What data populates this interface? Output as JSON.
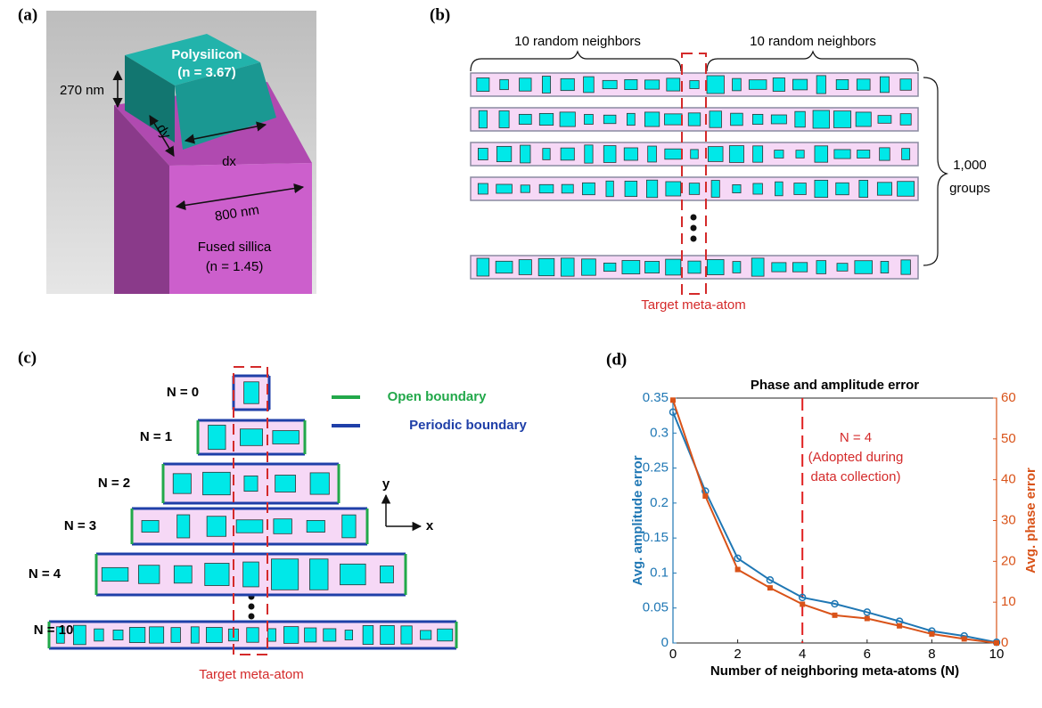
{
  "panel_a": {
    "label": "(a)",
    "height": "270 nm",
    "material_top": "Polysilicon",
    "index_top": "(n = 3.67)",
    "dy": "dy",
    "dx": "dx",
    "period": "800 nm",
    "material_bottom": "Fused sillica",
    "index_bottom": "(n = 1.45)"
  },
  "panel_b": {
    "label": "(b)",
    "left_neighbors": "10 random neighbors",
    "right_neighbors": "10 random neighbors",
    "group_count": "1,000",
    "group_unit": "groups",
    "target": "Target meta-atom"
  },
  "panel_c": {
    "label": "(c)",
    "rows": [
      "N = 0",
      "N = 1",
      "N = 2",
      "N = 3",
      "N = 4",
      "N = 10"
    ],
    "legend": [
      "Open boundary",
      "Periodic boundary"
    ],
    "axis_y": "y",
    "axis_x": "x",
    "target": "Target meta-atom"
  },
  "panel_d": {
    "label": "(d)"
  },
  "chart_data": {
    "type": "line",
    "title": "Phase and amplitude error",
    "x_label": "Number of neighboring meta-atoms (N)",
    "y_label": "Avg. amplitude error",
    "y2_label": "Avg. phase error",
    "x": [
      0,
      1,
      2,
      3,
      4,
      5,
      6,
      7,
      8,
      9,
      10
    ],
    "series": [
      {
        "name": "Avg. amplitude error",
        "color": "#1f77b4",
        "marker": "circle",
        "values": [
          0.33,
          0.217,
          0.121,
          0.09,
          0.065,
          0.056,
          0.044,
          0.031,
          0.017,
          0.01,
          0.001
        ]
      },
      {
        "name": "Avg. phase error",
        "color": "#d95319",
        "marker": "square",
        "axis": "y2",
        "values": [
          59.5,
          36,
          18,
          13.5,
          9.5,
          6.8,
          6,
          4.2,
          2.2,
          1,
          0
        ]
      }
    ],
    "xlim": [
      0,
      10
    ],
    "xticks": [
      0,
      2,
      4,
      6,
      8,
      10
    ],
    "ylim": [
      0,
      0.35
    ],
    "yticks": [
      0,
      0.05,
      0.1,
      0.15,
      0.2,
      0.25,
      0.3,
      0.35
    ],
    "y2lim": [
      0,
      60
    ],
    "y2ticks": [
      0,
      10,
      20,
      30,
      40,
      50,
      60
    ],
    "vline": 4,
    "annotation": [
      "N = 4",
      "(Adopted during",
      "data collection)"
    ]
  }
}
